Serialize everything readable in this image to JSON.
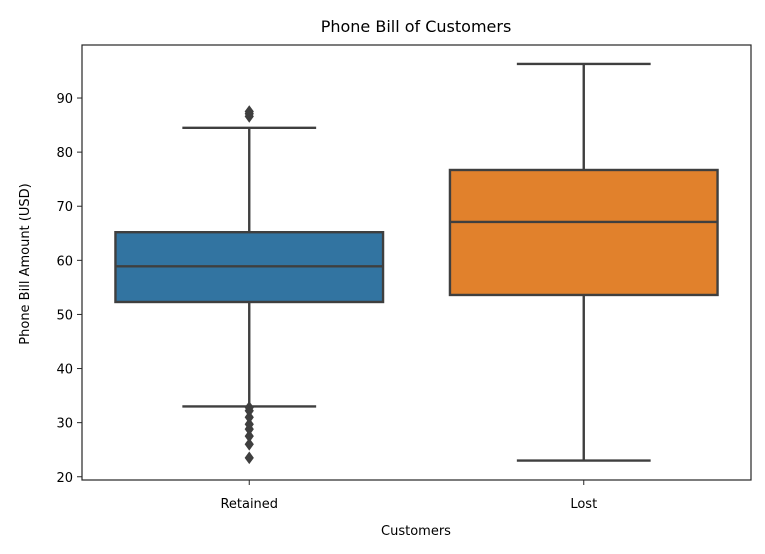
{
  "chart_data": {
    "type": "box",
    "title": "Phone Bill of Customers",
    "xlabel": "Customers",
    "ylabel": "Phone Bill Amount (USD)",
    "categories": [
      "Retained",
      "Lost"
    ],
    "ylim": [
      19.4,
      99.8
    ],
    "yticks": [
      20,
      30,
      40,
      50,
      60,
      70,
      80,
      90
    ],
    "grid": false,
    "legend": "none",
    "series": [
      {
        "category": "Retained",
        "color": "#3274a1",
        "whisker_low": 33.0,
        "q1": 52.3,
        "median": 58.9,
        "q3": 65.2,
        "whisker_high": 84.5,
        "outliers": [
          23.5,
          26.0,
          27.5,
          28.8,
          29.7,
          31.0,
          32.2,
          32.8,
          86.6,
          87.1,
          87.5
        ]
      },
      {
        "category": "Lost",
        "color": "#e1812c",
        "whisker_low": 23.0,
        "q1": 53.6,
        "median": 67.1,
        "q3": 76.7,
        "whisker_high": 96.3,
        "outliers": []
      }
    ]
  }
}
